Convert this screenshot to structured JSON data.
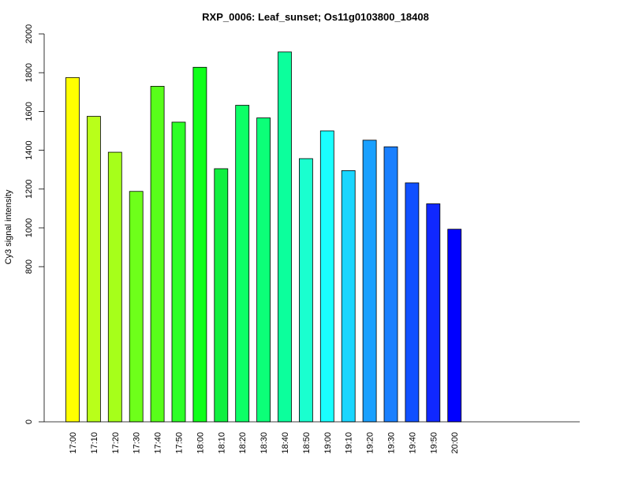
{
  "chart_data": {
    "type": "bar",
    "title": "RXP_0006: Leaf_sunset; Os11g0103800_18408",
    "xlabel": "",
    "ylabel": "Cy3 signal intensity",
    "ylim": [
      0,
      2000
    ],
    "yticks": [
      0,
      800,
      1000,
      1200,
      1400,
      1600,
      1800,
      2000
    ],
    "grid": false,
    "legend": "none",
    "categories": [
      "17:00",
      "17:10",
      "17:20",
      "17:30",
      "17:40",
      "17:50",
      "18:00",
      "18:10",
      "18:20",
      "18:30",
      "18:40",
      "18:50",
      "19:00",
      "19:10",
      "19:20",
      "19:30",
      "19:40",
      "19:50",
      "20:00"
    ],
    "values": [
      1775,
      1575,
      1390,
      1188,
      1730,
      1545,
      1828,
      1305,
      1632,
      1567,
      1907,
      1357,
      1500,
      1295,
      1452,
      1418,
      1232,
      1124,
      993
    ],
    "colors": [
      "#ffff00",
      "#b9ff1a",
      "#a6ff1a",
      "#6eff1a",
      "#58ff1a",
      "#2dff27",
      "#10ff1a",
      "#10f040",
      "#0cff66",
      "#0cff78",
      "#0cff9c",
      "#1affcf",
      "#1affff",
      "#1ad6ff",
      "#1aa0ff",
      "#1a80ff",
      "#1050ff",
      "#1028ff",
      "#0000ff"
    ]
  }
}
